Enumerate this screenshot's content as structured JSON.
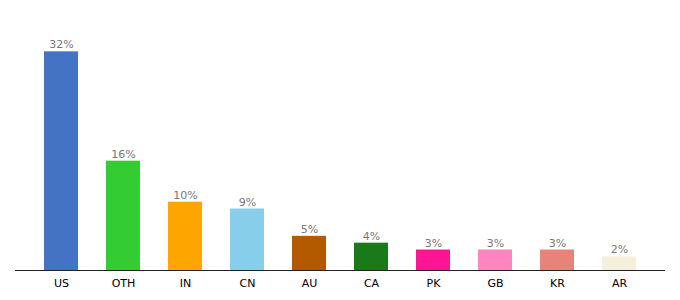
{
  "chart_data": {
    "type": "bar",
    "categories": [
      "US",
      "OTH",
      "IN",
      "CN",
      "AU",
      "CA",
      "PK",
      "GB",
      "KR",
      "AR"
    ],
    "values": [
      32,
      16,
      10,
      9,
      5,
      4,
      3,
      3,
      3,
      2
    ],
    "value_labels": [
      "32%",
      "16%",
      "10%",
      "9%",
      "5%",
      "4%",
      "3%",
      "3%",
      "3%",
      "2%"
    ],
    "colors": [
      "#4472C4",
      "#33CC33",
      "#FFA500",
      "#87CEEB",
      "#B35900",
      "#1A7A1A",
      "#FF1493",
      "#FF85C0",
      "#E8837A",
      "#F5F0DC"
    ],
    "ylim": [
      0,
      36
    ],
    "data_labels": true,
    "tick_labels": "x",
    "grid": false
  }
}
